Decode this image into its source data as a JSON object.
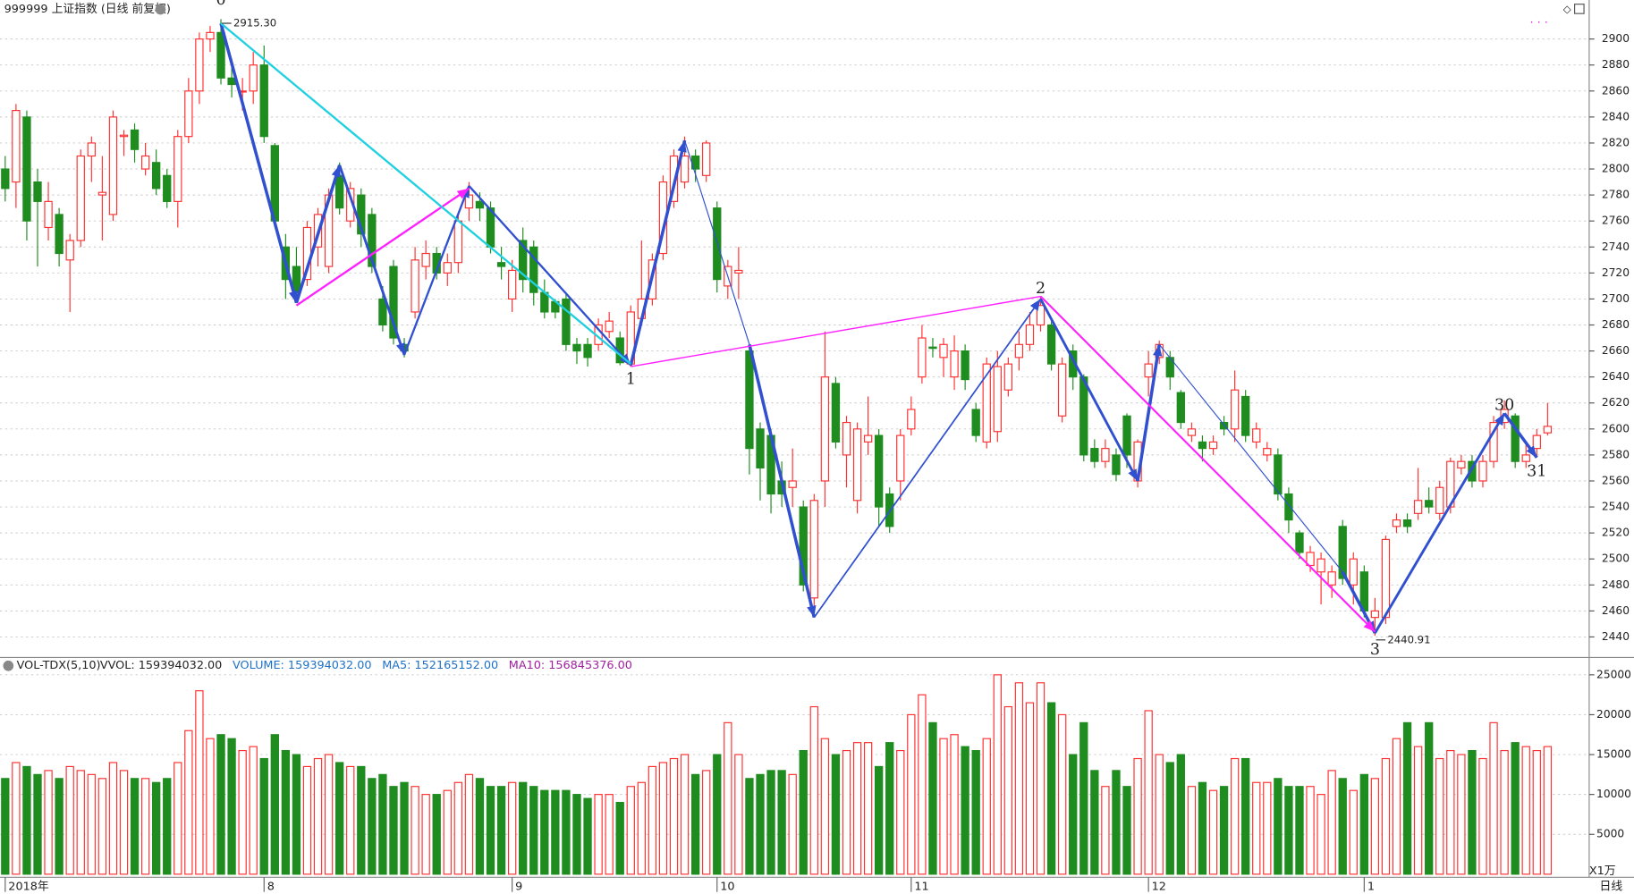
{
  "chart_data": {
    "type": "candlestick",
    "title": "999999 上证指数 (日线 前复权)",
    "up_color": "#ff3030",
    "down_color": "#1e8c1e",
    "ylim": [
      2425,
      2926
    ],
    "yticks": [
      2440,
      2460,
      2480,
      2500,
      2520,
      2540,
      2560,
      2580,
      2600,
      2620,
      2640,
      2660,
      2680,
      2700,
      2720,
      2740,
      2760,
      2780,
      2800,
      2820,
      2840,
      2860,
      2880,
      2900
    ],
    "grid": true,
    "xticks": [
      {
        "value": 0,
        "label": "2018年"
      },
      {
        "value": 24,
        "label": "8"
      },
      {
        "value": 47,
        "label": "9"
      },
      {
        "value": 66,
        "label": "10"
      },
      {
        "value": 84,
        "label": "11"
      },
      {
        "value": 106,
        "label": "12"
      },
      {
        "value": 126,
        "label": "1"
      }
    ],
    "open": [
      2800,
      2790,
      2840,
      2790,
      2755,
      2765,
      2730,
      2745,
      2810,
      2780,
      2765,
      2825,
      2830,
      2800,
      2805,
      2795,
      2775,
      2825,
      2860,
      2900,
      2905,
      2870,
      2860,
      2860,
      2880,
      2818,
      2740,
      2725,
      2715,
      2740,
      2725,
      2795,
      2760,
      2780,
      2765,
      2700,
      2725,
      2665,
      2690,
      2725,
      2735,
      2720,
      2728,
      2770,
      2775,
      2770,
      2728,
      2700,
      2745,
      2740,
      2705,
      2698,
      2700,
      2665,
      2665,
      2665,
      2675,
      2670,
      2650,
      2685,
      2700,
      2735,
      2775,
      2790,
      2810,
      2795,
      2770,
      2710,
      2720,
      2660,
      2600,
      2595,
      2560,
      2555,
      2540,
      2470,
      2560,
      2635,
      2580,
      2545,
      2590,
      2595,
      2550,
      2560,
      2600,
      2640,
      2663,
      2655,
      2640,
      2660,
      2615,
      2590,
      2598,
      2630,
      2655,
      2665,
      2680,
      2680,
      2610,
      2660,
      2640,
      2585,
      2575,
      2580,
      2610,
      2560,
      2640,
      2655,
      2655,
      2628,
      2595,
      2590,
      2585,
      2605,
      2600,
      2625,
      2590,
      2580,
      2580,
      2550,
      2520,
      2495,
      2490,
      2480,
      2525,
      2480,
      2490,
      2455,
      2455,
      2525,
      2530,
      2535,
      2545,
      2535,
      2540,
      2570,
      2575,
      2560,
      2575,
      2605,
      2610,
      2575,
      2585,
      2597
    ],
    "high": [
      2810,
      2850,
      2845,
      2800,
      2790,
      2770,
      2750,
      2815,
      2825,
      2810,
      2845,
      2830,
      2835,
      2820,
      2815,
      2800,
      2830,
      2870,
      2905,
      2910,
      2915.3,
      2885,
      2870,
      2890,
      2895,
      2820,
      2750,
      2740,
      2760,
      2770,
      2785,
      2805,
      2790,
      2785,
      2770,
      2710,
      2730,
      2670,
      2740,
      2745,
      2740,
      2735,
      2765,
      2790,
      2782,
      2775,
      2740,
      2730,
      2755,
      2745,
      2715,
      2700,
      2705,
      2670,
      2670,
      2685,
      2690,
      2675,
      2695,
      2745,
      2735,
      2795,
      2815,
      2825,
      2815,
      2822,
      2775,
      2730,
      2740,
      2665,
      2605,
      2600,
      2575,
      2585,
      2545,
      2550,
      2675,
      2640,
      2610,
      2605,
      2625,
      2600,
      2555,
      2600,
      2625,
      2680,
      2670,
      2670,
      2672,
      2665,
      2620,
      2655,
      2660,
      2655,
      2675,
      2690,
      2702,
      2685,
      2655,
      2665,
      2642,
      2592,
      2592,
      2585,
      2612,
      2592,
      2660,
      2668,
      2660,
      2630,
      2605,
      2595,
      2595,
      2610,
      2645,
      2630,
      2605,
      2590,
      2585,
      2555,
      2522,
      2510,
      2505,
      2495,
      2530,
      2505,
      2495,
      2470,
      2518,
      2535,
      2535,
      2570,
      2555,
      2560,
      2578,
      2580,
      2580,
      2580,
      2610,
      2622,
      2612,
      2590,
      2600,
      2620
    ],
    "low": [
      2775,
      2770,
      2745,
      2725,
      2745,
      2725,
      2690,
      2740,
      2790,
      2745,
      2760,
      2810,
      2805,
      2795,
      2780,
      2770,
      2755,
      2820,
      2850,
      2890,
      2865,
      2855,
      2845,
      2850,
      2820,
      2755,
      2700,
      2697,
      2710,
      2725,
      2720,
      2765,
      2755,
      2740,
      2720,
      2675,
      2665,
      2655,
      2685,
      2715,
      2715,
      2710,
      2720,
      2760,
      2760,
      2735,
      2715,
      2690,
      2705,
      2695,
      2685,
      2685,
      2660,
      2650,
      2648,
      2660,
      2670,
      2649,
      2648,
      2680,
      2695,
      2730,
      2770,
      2785,
      2790,
      2790,
      2705,
      2700,
      2700,
      2565,
      2545,
      2535,
      2540,
      2540,
      2475,
      2455,
      2540,
      2585,
      2555,
      2535,
      2580,
      2525,
      2520,
      2545,
      2595,
      2635,
      2655,
      2640,
      2630,
      2630,
      2590,
      2585,
      2590,
      2625,
      2645,
      2660,
      2675,
      2645,
      2605,
      2630,
      2575,
      2570,
      2570,
      2560,
      2570,
      2555,
      2625,
      2650,
      2630,
      2600,
      2590,
      2575,
      2580,
      2595,
      2590,
      2590,
      2585,
      2575,
      2545,
      2520,
      2500,
      2490,
      2465,
      2470,
      2480,
      2465,
      2455,
      2440.91,
      2450,
      2520,
      2520,
      2530,
      2535,
      2530,
      2535,
      2565,
      2555,
      2555,
      2570,
      2600,
      2570,
      2570,
      2578,
      2595
    ],
    "close": [
      2785,
      2845,
      2760,
      2775,
      2775,
      2735,
      2745,
      2810,
      2820,
      2782,
      2840,
      2826,
      2815,
      2810,
      2785,
      2775,
      2825,
      2860,
      2900,
      2905,
      2870,
      2865,
      2860,
      2880,
      2825,
      2760,
      2715,
      2705,
      2755,
      2765,
      2780,
      2770,
      2785,
      2750,
      2725,
      2680,
      2670,
      2660,
      2730,
      2735,
      2720,
      2728,
      2760,
      2780,
      2770,
      2740,
      2725,
      2722,
      2715,
      2705,
      2690,
      2690,
      2665,
      2660,
      2655,
      2680,
      2683,
      2651,
      2690,
      2700,
      2730,
      2790,
      2810,
      2810,
      2800,
      2820,
      2715,
      2725,
      2722,
      2585,
      2570,
      2550,
      2550,
      2560,
      2480,
      2545,
      2640,
      2590,
      2605,
      2600,
      2595,
      2540,
      2525,
      2595,
      2615,
      2670,
      2662,
      2665,
      2660,
      2638,
      2595,
      2650,
      2648,
      2650,
      2665,
      2680,
      2695,
      2650,
      2650,
      2640,
      2580,
      2575,
      2585,
      2565,
      2580,
      2590,
      2650,
      2665,
      2640,
      2605,
      2600,
      2585,
      2590,
      2600,
      2630,
      2595,
      2600,
      2585,
      2550,
      2530,
      2505,
      2505,
      2500,
      2490,
      2485,
      2500,
      2460,
      2460,
      2515,
      2530,
      2525,
      2545,
      2540,
      2555,
      2575,
      2575,
      2560,
      2575,
      2605,
      2615,
      2575,
      2580,
      2595,
      2602
    ],
    "price_labels": [
      {
        "text": "2915.30",
        "index": 20,
        "price": 2915.3
      },
      {
        "text": "2440.91",
        "index": 127,
        "price": 2440.91
      }
    ],
    "waves": [
      {
        "color": "#3050d0",
        "arrow": true,
        "points": [
          [
            20,
            2912
          ],
          [
            27,
            2697
          ]
        ]
      },
      {
        "color": "#3050d0",
        "arrow": true,
        "points": [
          [
            27,
            2697
          ],
          [
            31,
            2803
          ]
        ]
      },
      {
        "color": "#3050d0",
        "arrow": true,
        "points": [
          [
            31,
            2803
          ],
          [
            37,
            2657
          ]
        ]
      },
      {
        "color": "#3050d0",
        "arrow": true,
        "points": [
          [
            37,
            2657
          ],
          [
            43,
            2787
          ]
        ]
      },
      {
        "color": "#3050d0",
        "arrow": true,
        "points": [
          [
            43,
            2787
          ],
          [
            58,
            2649
          ]
        ]
      },
      {
        "color": "#3050d0",
        "arrow": true,
        "points": [
          [
            58,
            2649
          ],
          [
            63,
            2822
          ]
        ]
      },
      {
        "color": "#3050d0",
        "arrow": false,
        "points": [
          [
            63,
            2822
          ],
          [
            69,
            2665
          ]
        ]
      },
      {
        "color": "#3050d0",
        "arrow": true,
        "points": [
          [
            69,
            2665
          ],
          [
            75,
            2455
          ]
        ]
      },
      {
        "color": "#3050d0",
        "arrow": true,
        "points": [
          [
            75,
            2455
          ],
          [
            96,
            2700
          ]
        ]
      },
      {
        "color": "#3050d0",
        "arrow": true,
        "points": [
          [
            96,
            2700
          ],
          [
            105,
            2560
          ]
        ]
      },
      {
        "color": "#3050d0",
        "arrow": true,
        "points": [
          [
            105,
            2560
          ],
          [
            107,
            2665
          ]
        ]
      },
      {
        "color": "#3050d0",
        "arrow": false,
        "points": [
          [
            107,
            2665
          ],
          [
            124,
            2490
          ]
        ]
      },
      {
        "color": "#3050d0",
        "arrow": true,
        "points": [
          [
            124,
            2490
          ],
          [
            127,
            2443
          ]
        ]
      },
      {
        "color": "#3050d0",
        "arrow": true,
        "points": [
          [
            127,
            2443
          ],
          [
            139,
            2612
          ]
        ]
      },
      {
        "color": "#3050d0",
        "arrow": true,
        "points": [
          [
            139,
            2612
          ],
          [
            142,
            2578
          ]
        ]
      },
      {
        "color": "#ff20ff",
        "arrow": true,
        "points": [
          [
            27,
            2695
          ],
          [
            43,
            2785
          ]
        ]
      },
      {
        "color": "#ff20ff",
        "arrow": false,
        "points": [
          [
            58,
            2648
          ],
          [
            96,
            2702
          ]
        ]
      },
      {
        "color": "#ff20ff",
        "arrow": true,
        "points": [
          [
            96,
            2702
          ],
          [
            127,
            2444
          ]
        ]
      },
      {
        "color": "#20d0e0",
        "arrow": false,
        "points": [
          [
            20,
            2912
          ],
          [
            58,
            2650
          ]
        ]
      }
    ],
    "wave_labels": [
      {
        "text": "0",
        "index": 20,
        "price": 2924,
        "pos": "above"
      },
      {
        "text": "1",
        "index": 58,
        "price": 2649,
        "pos": "below"
      },
      {
        "text": "2",
        "index": 96,
        "price": 2702,
        "pos": "above"
      },
      {
        "text": "3",
        "index": 127,
        "price": 2441,
        "pos": "below"
      },
      {
        "text": "30",
        "index": 139,
        "price": 2612,
        "pos": "above"
      },
      {
        "text": "31",
        "index": 142,
        "price": 2578,
        "pos": "below"
      }
    ],
    "volume": {
      "title": "VOL-TDX(5,10)",
      "legend": [
        {
          "text": "VVOL: 159394032.00",
          "color": "#222222"
        },
        {
          "text": "VOLUME: 159394032.00",
          "color": "#1e70c8"
        },
        {
          "text": "MA5: 152165152.00",
          "color": "#1e70c8"
        },
        {
          "text": "MA10: 156845376.00",
          "color": "#a020a0"
        }
      ],
      "unit": "X1万",
      "ylim": [
        0,
        26000
      ],
      "yticks": [
        5000,
        10000,
        15000,
        20000,
        25000
      ],
      "values": [
        12000,
        14000,
        13500,
        12500,
        13000,
        12000,
        13500,
        13000,
        12500,
        12000,
        14000,
        13000,
        12000,
        12000,
        11500,
        12000,
        14000,
        18000,
        23000,
        17000,
        17500,
        17000,
        15500,
        16000,
        14500,
        17500,
        15500,
        15000,
        13500,
        14500,
        15000,
        14000,
        13500,
        13500,
        12000,
        12500,
        11000,
        11500,
        11000,
        10000,
        10000,
        10500,
        11500,
        12500,
        12000,
        11000,
        11000,
        11500,
        11500,
        11000,
        10500,
        10500,
        10500,
        10000,
        9500,
        10000,
        10000,
        9000,
        11000,
        11500,
        13500,
        14000,
        14500,
        15000,
        12500,
        13000,
        15000,
        19000,
        15000,
        12000,
        12500,
        13000,
        13000,
        12500,
        15500,
        21000,
        17000,
        15000,
        15500,
        16500,
        16500,
        13500,
        16500,
        15500,
        20000,
        22500,
        19000,
        17000,
        17500,
        16000,
        15500,
        17000,
        25000,
        21000,
        24000,
        21500,
        24000,
        21500,
        20000,
        15000,
        19000,
        13000,
        11000,
        13000,
        11000,
        14500,
        20500,
        15000,
        14000,
        15000,
        11000,
        11500,
        10500,
        11000,
        14500,
        14500,
        11500,
        11500,
        12000,
        11000,
        11000,
        11000,
        10000,
        13000,
        12000,
        10500,
        12500,
        12000,
        14500,
        17000,
        19000,
        16000,
        19000,
        14500,
        15500,
        15000,
        15500,
        14500,
        19000,
        15500,
        16500,
        16000,
        15500,
        16000
      ]
    },
    "period": "日线"
  }
}
